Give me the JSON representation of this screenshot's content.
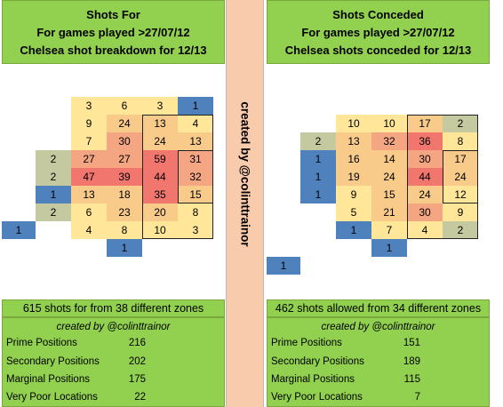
{
  "divider_text": "created by @colinttrainor",
  "colors": {
    "header_green": "#92d050",
    "divider_peach": "#f8cbad",
    "blue": "#4f81bd",
    "sage": "#c4c9a0",
    "yellow": "#ffe699",
    "light_orange": "#f8cb8a",
    "orange": "#f4a582",
    "red": "#f0766e"
  },
  "left": {
    "title": "Shots For",
    "subtitle1": "For games played >27/07/12",
    "subtitle2": "Chelsea shot breakdown for 12/13",
    "summary": "615 shots for from 38 different zones",
    "credit": "created by @colinttrainor",
    "stats": [
      {
        "label": "Prime Positions",
        "value": "216"
      },
      {
        "label": "Secondary Positions",
        "value": "202"
      },
      {
        "label": "Marginal Positions",
        "value": "175"
      },
      {
        "label": "Very Poor Locations",
        "value": "22"
      }
    ],
    "rows": [
      [
        null,
        null,
        3,
        6,
        3,
        1
      ],
      [
        null,
        null,
        9,
        24,
        13,
        4
      ],
      [
        null,
        null,
        7,
        30,
        24,
        13
      ],
      [
        null,
        2,
        27,
        27,
        59,
        31
      ],
      [
        null,
        2,
        47,
        39,
        44,
        32
      ],
      [
        null,
        1,
        13,
        18,
        35,
        15
      ],
      [
        null,
        2,
        6,
        23,
        20,
        8
      ],
      [
        1,
        null,
        4,
        8,
        10,
        3
      ],
      [
        null,
        null,
        null,
        1,
        null,
        null
      ],
      [
        null,
        null,
        null,
        null,
        null,
        null
      ]
    ]
  },
  "right": {
    "title": "Shots Conceded",
    "subtitle1": "For games played >27/07/12",
    "subtitle2": "Chelsea shots conceded for 12/13",
    "summary": "462 shots allowed from 34 different zones",
    "credit": "created by @colinttrainor",
    "stats": [
      {
        "label": "Prime Positions",
        "value": "151"
      },
      {
        "label": "Secondary Positions",
        "value": "189"
      },
      {
        "label": "Marginal Positions",
        "value": "115"
      },
      {
        "label": "Very Poor Locations",
        "value": "7"
      }
    ],
    "rows": [
      [
        null,
        null,
        null,
        null,
        null,
        null
      ],
      [
        null,
        null,
        10,
        10,
        17,
        2
      ],
      [
        null,
        2,
        13,
        32,
        36,
        8
      ],
      [
        null,
        1,
        16,
        14,
        30,
        17
      ],
      [
        null,
        1,
        19,
        24,
        44,
        24
      ],
      [
        null,
        1,
        9,
        15,
        24,
        12
      ],
      [
        null,
        null,
        5,
        21,
        30,
        9
      ],
      [
        null,
        null,
        1,
        7,
        4,
        2
      ],
      [
        null,
        null,
        null,
        1,
        null,
        null
      ],
      [
        1,
        null,
        null,
        null,
        null,
        null
      ]
    ]
  }
}
